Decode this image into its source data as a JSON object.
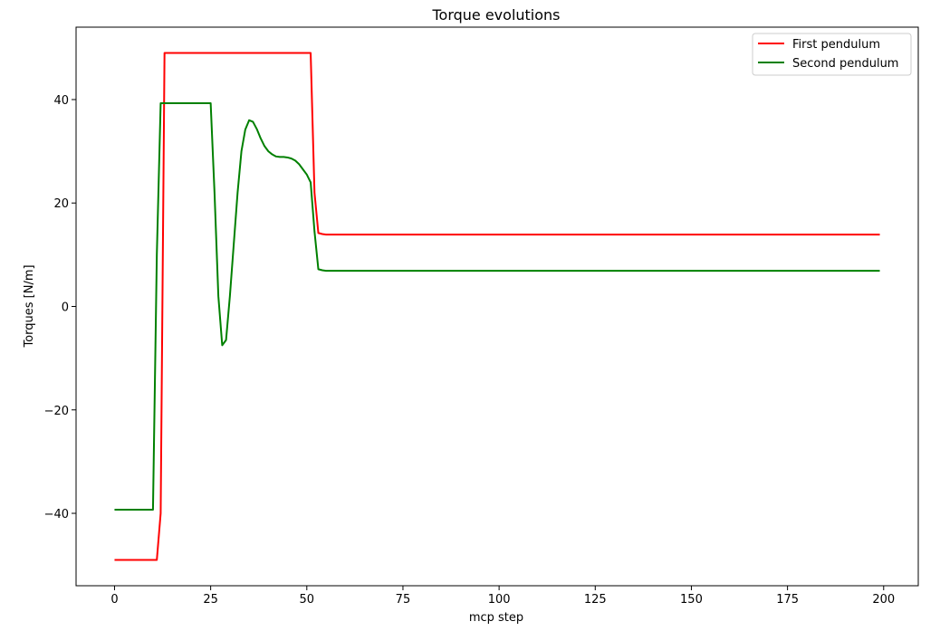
{
  "chart_data": {
    "type": "line",
    "title": "Torque evolutions",
    "xlabel": "mcp step",
    "ylabel": "Torques [N/m]",
    "xlim": [
      -10,
      209
    ],
    "ylim": [
      -54,
      54
    ],
    "xticks": [
      0,
      25,
      50,
      75,
      100,
      125,
      150,
      175,
      200
    ],
    "yticks": [
      -40,
      -20,
      0,
      20,
      40
    ],
    "ytick_labels": [
      "−40",
      "−20",
      "0",
      "20",
      "40"
    ],
    "grid": false,
    "legend_position": "top-right",
    "series": [
      {
        "name": "First pendulum",
        "color": "#ff0000",
        "x": [
          0,
          11,
          12,
          13,
          14,
          20,
          30,
          40,
          50,
          51,
          52,
          53,
          54,
          55,
          56,
          60,
          80,
          100,
          150,
          199
        ],
        "y": [
          -49,
          -49,
          -40,
          49,
          49,
          49,
          49,
          49,
          49,
          49,
          22,
          14.2,
          14,
          13.9,
          13.9,
          13.9,
          13.9,
          13.9,
          13.9,
          13.9
        ]
      },
      {
        "name": "Second pendulum",
        "color": "#008000",
        "x": [
          0,
          10,
          11,
          12,
          13,
          20,
          25,
          26,
          27,
          28,
          29,
          30,
          31,
          32,
          33,
          34,
          35,
          36,
          37,
          38,
          39,
          40,
          41,
          42,
          43,
          44,
          45,
          46,
          47,
          48,
          49,
          50,
          51,
          52,
          53,
          54,
          55,
          56,
          60,
          80,
          100,
          150,
          199
        ],
        "y": [
          -39.3,
          -39.3,
          10,
          39.3,
          39.3,
          39.3,
          39.3,
          22,
          2,
          -7.5,
          -6.5,
          2,
          12,
          22,
          30,
          34.2,
          36,
          35.7,
          34.3,
          32.5,
          31,
          30,
          29.4,
          29,
          28.9,
          28.9,
          28.8,
          28.6,
          28.2,
          27.5,
          26.5,
          25.5,
          24,
          14.5,
          7.2,
          7,
          6.9,
          6.9,
          6.9,
          6.9,
          6.9,
          6.9,
          6.9
        ]
      }
    ]
  }
}
